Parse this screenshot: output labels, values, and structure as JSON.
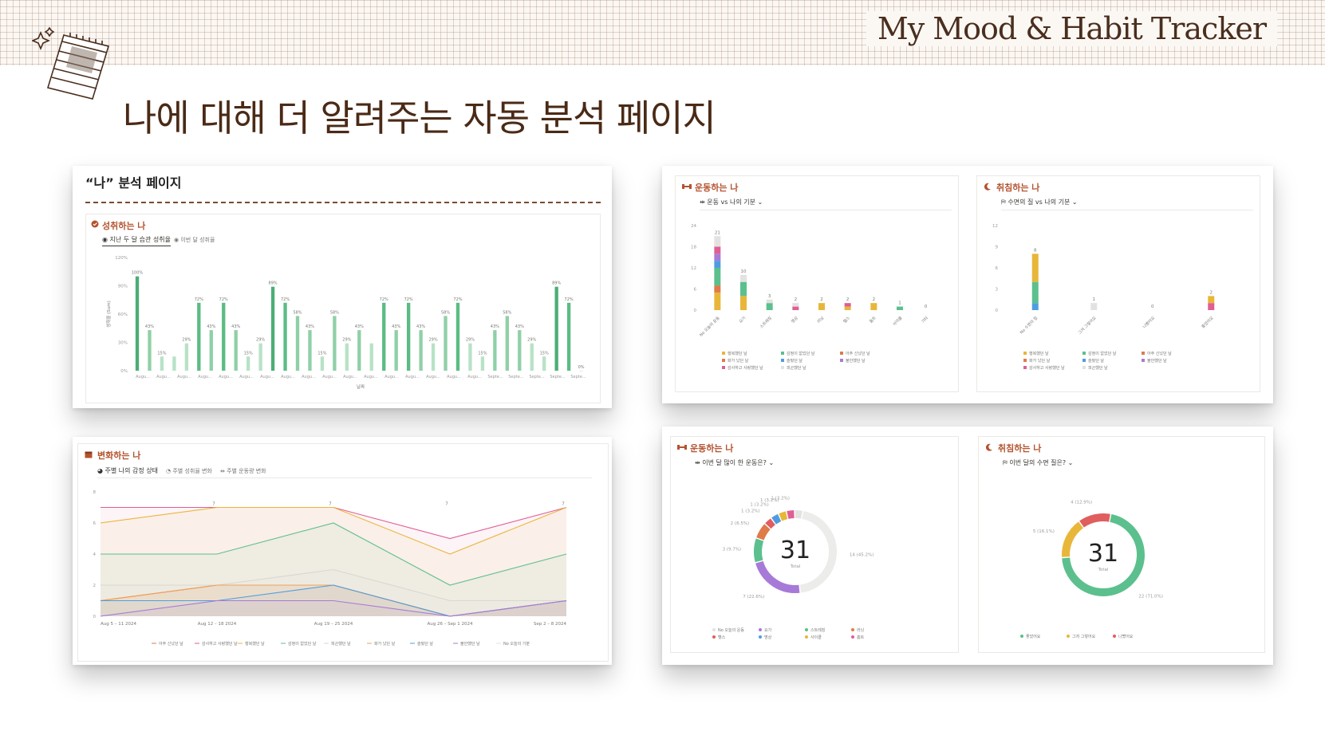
{
  "header": {
    "brand": "My Mood & Habit Tracker",
    "headline": "나에 대해 더 알려주는 자동 분석 페이지"
  },
  "card1": {
    "page_title": "“나” 분석 페이지",
    "panel_title": "성취하는 나",
    "tabs": [
      "지난 두 달 습관 성취율",
      "이번 달 성취율"
    ],
    "chart": {
      "type": "bar",
      "xlabel": "날짜",
      "ylabel": "성취율 (Sum)",
      "y_ticks": [
        "120%",
        "90%",
        "60%",
        "30%",
        "0%"
      ],
      "x_tick_labels": [
        "Augu...",
        "Augu...",
        "Augu...",
        "Augu...",
        "Augu...",
        "Augu...",
        "Augu...",
        "Augu...",
        "Augu...",
        "Augu...",
        "Augu...",
        "Augu...",
        "Augu...",
        "Augu...",
        "Augu...",
        "Augu...",
        "Augu...",
        "Septe...",
        "Septe...",
        "Septe...",
        "Septe...",
        "Septe..."
      ],
      "values": [
        100,
        43,
        15,
        15,
        29,
        72,
        43,
        72,
        43,
        15,
        29,
        89,
        72,
        58,
        43,
        15,
        58,
        29,
        43,
        29,
        72,
        43,
        72,
        43,
        29,
        58,
        72,
        29,
        15,
        43,
        58,
        43,
        29,
        15,
        89,
        72,
        0
      ],
      "labels": [
        "100%",
        "43%",
        "15%",
        "",
        "29%",
        "72%",
        "43%",
        "72%",
        "43%",
        "15%",
        "29%",
        "89%",
        "72%",
        "58%",
        "43%",
        "15%",
        "58%",
        "29%",
        "43%",
        "",
        "72%",
        "43%",
        "72%",
        "43%",
        "29%",
        "58%",
        "72%",
        "29%",
        "15%",
        "43%",
        "58%",
        "43%",
        "29%",
        "15%",
        "89%",
        "72%",
        "0%"
      ]
    }
  },
  "card2": {
    "panel_title": "운동하는 나",
    "tab": "운동 vs 나의 기분",
    "chart": {
      "type": "bar",
      "y_ticks": [
        "24",
        "18",
        "12",
        "6",
        "0"
      ],
      "categories": [
        "No 오늘의 운동",
        "요가",
        "스트레칭",
        "명상",
        "러닝",
        "헬스",
        "홈트",
        "사이클",
        "기타"
      ],
      "totals": [
        21,
        10,
        3,
        2,
        2,
        2,
        2,
        1,
        0
      ],
      "segments": [
        [
          {
            "c": "#e8b73a",
            "v": 5
          },
          {
            "c": "#df7a49",
            "v": 2
          },
          {
            "c": "#5bc08d",
            "v": 5
          },
          {
            "c": "#4f9de0",
            "v": 2
          },
          {
            "c": "#a77ad8",
            "v": 2
          },
          {
            "c": "#e05e94",
            "v": 2
          },
          {
            "c": "#e3e2e0",
            "v": 3
          }
        ],
        [
          {
            "c": "#e8b73a",
            "v": 4
          },
          {
            "c": "#5bc08d",
            "v": 4
          },
          {
            "c": "#e3e2e0",
            "v": 2
          }
        ],
        [
          {
            "c": "#5bc08d",
            "v": 2
          },
          {
            "c": "#e3e2e0",
            "v": 1
          }
        ],
        [
          {
            "c": "#e05e94",
            "v": 1
          },
          {
            "c": "#e3e2e0",
            "v": 1
          }
        ],
        [
          {
            "c": "#e8b73a",
            "v": 2
          }
        ],
        [
          {
            "c": "#e8b73a",
            "v": 1
          },
          {
            "c": "#e05e94",
            "v": 1
          }
        ],
        [
          {
            "c": "#e8b73a",
            "v": 2
          }
        ],
        [
          {
            "c": "#5bc08d",
            "v": 1
          }
        ],
        []
      ],
      "legend": [
        {
          "label": "행복했던 날",
          "color": "#e8b73a"
        },
        {
          "label": "감정이 없었던 날",
          "color": "#5bc08d"
        },
        {
          "label": "아주 신났던 날",
          "color": "#df7a49"
        },
        {
          "label": "화가 났던 날",
          "color": "#df7a49"
        },
        {
          "label": "슬펐던 날",
          "color": "#4f9de0"
        },
        {
          "label": "불안했던 날",
          "color": "#a77ad8"
        },
        {
          "label": "감사하고 사랑했던 날",
          "color": "#e05e94"
        },
        {
          "label": "피곤했던 날",
          "color": "#e3e2e0"
        }
      ]
    }
  },
  "card3": {
    "panel_title": "취침하는 나",
    "tab": "수면의 질 vs 나의 기분",
    "chart": {
      "type": "bar",
      "y_ticks": [
        "12",
        "9",
        "6",
        "3",
        "0"
      ],
      "categories": [
        "No 수면의 질",
        "그저 그렇어요",
        "나빴어요",
        "좋았어요"
      ],
      "totals": [
        8,
        1,
        0,
        2
      ],
      "segments": [
        [
          {
            "c": "#4f9de0",
            "v": 1
          },
          {
            "c": "#5bc08d",
            "v": 3
          },
          {
            "c": "#e8b73a",
            "v": 4
          }
        ],
        [
          {
            "c": "#e3e2e0",
            "v": 1
          }
        ],
        [],
        [
          {
            "c": "#e05e94",
            "v": 1
          },
          {
            "c": "#e8b73a",
            "v": 1
          }
        ]
      ],
      "legend": [
        {
          "label": "행복했던 날",
          "color": "#e8b73a"
        },
        {
          "label": "감정이 없었던 날",
          "color": "#5bc08d"
        },
        {
          "label": "아주 신났던 날",
          "color": "#df7a49"
        },
        {
          "label": "화가 났던 날",
          "color": "#df7a49"
        },
        {
          "label": "슬펐던 날",
          "color": "#4f9de0"
        },
        {
          "label": "불안했던 날",
          "color": "#a77ad8"
        },
        {
          "label": "감사하고 사랑했던 날",
          "color": "#e05e94"
        },
        {
          "label": "피곤했던 날",
          "color": "#e3e2e0"
        }
      ]
    }
  },
  "card4": {
    "panel_title": "변화하는 나",
    "tabs": [
      "주별 나의 감정 상태",
      "주별 성취율 변화",
      "주별 운동량 변화"
    ],
    "chart": {
      "type": "line",
      "x": [
        "Aug 5 – 11 2024",
        "Aug 12 – 18 2024",
        "Aug 19 – 25 2024",
        "Aug 26 – Sep 1 2024",
        "Sep 2 – 8 2024"
      ],
      "y_ticks": [
        "8",
        "6",
        "4",
        "2",
        "0"
      ],
      "ylim": [
        0,
        8
      ],
      "top_labels": [
        "7",
        "7",
        "7",
        "7"
      ],
      "series": [
        {
          "color": "#df7a49",
          "values": [
            1,
            2,
            2,
            0,
            1
          ]
        },
        {
          "color": "#e05e94",
          "values": [
            7,
            7,
            7,
            5,
            7
          ]
        },
        {
          "color": "#e8b73a",
          "values": [
            6,
            7,
            7,
            4,
            7
          ]
        },
        {
          "color": "#5bc08d",
          "values": [
            4,
            4,
            6,
            2,
            4
          ]
        },
        {
          "color": "#d9d7d3",
          "values": [
            2,
            2,
            3,
            1,
            1
          ]
        },
        {
          "color": "#f0a15a",
          "values": [
            1,
            2,
            2,
            0,
            1
          ]
        },
        {
          "color": "#4f9de0",
          "values": [
            1,
            1,
            2,
            0,
            1
          ]
        },
        {
          "color": "#a77ad8",
          "values": [
            0,
            1,
            1,
            0,
            1
          ]
        }
      ],
      "legend": [
        {
          "label": "아주 신났던 날",
          "color": "#df7a49"
        },
        {
          "label": "감사하고 사랑했던 날",
          "color": "#e05e94"
        },
        {
          "label": "행복했던 날",
          "color": "#e8b73a"
        },
        {
          "label": "감정이 없었던 날",
          "color": "#5bc08d"
        },
        {
          "label": "피곤했던 날",
          "color": "#d9d7d3"
        },
        {
          "label": "화가 났던 날",
          "color": "#f0a15a"
        },
        {
          "label": "슬펐던 날",
          "color": "#4f9de0"
        },
        {
          "label": "불안했던 날",
          "color": "#a77ad8"
        },
        {
          "label": "No 오늘의 기분",
          "color": "#e3e2e0"
        }
      ]
    }
  },
  "card5": {
    "panel_title": "운동하는 나",
    "tab": "이번 달 많이 한 운동은?",
    "chart": {
      "type": "pie",
      "total": "31",
      "total_label": "Total",
      "slices": [
        {
          "v": 14,
          "c": "#ececea",
          "label": "14 (45.2%)"
        },
        {
          "v": 7,
          "c": "#a77ad8",
          "label": "7 (22.6%)"
        },
        {
          "v": 3,
          "c": "#5bc08d",
          "label": "3 (9.7%)"
        },
        {
          "v": 2,
          "c": "#df7a49",
          "label": "2 (6.5%)"
        },
        {
          "v": 1,
          "c": "#e05e5e",
          "label": "1 (3.2%)"
        },
        {
          "v": 1,
          "c": "#4f9de0",
          "label": "1 (3.2%)"
        },
        {
          "v": 1,
          "c": "#e8b73a",
          "label": "1 (3.2%)"
        },
        {
          "v": 1,
          "c": "#e05e94",
          "label": "1 (3.2%)"
        },
        {
          "v": 1,
          "c": "#e3e2e0",
          "label": ""
        }
      ],
      "legend": [
        {
          "label": "No 오늘의 운동",
          "color": "#e3e2e0"
        },
        {
          "label": "요가",
          "color": "#a77ad8"
        },
        {
          "label": "스트레칭",
          "color": "#5bc08d"
        },
        {
          "label": "러닝",
          "color": "#df7a49"
        },
        {
          "label": "헬스",
          "color": "#e05e5e"
        },
        {
          "label": "명상",
          "color": "#4f9de0"
        },
        {
          "label": "사이클",
          "color": "#e8b73a"
        },
        {
          "label": "홈트",
          "color": "#e05e94"
        }
      ]
    }
  },
  "card6": {
    "panel_title": "취침하는 나",
    "tab": "이번 달의 수면 질은?",
    "chart": {
      "type": "pie",
      "total": "31",
      "total_label": "Total",
      "slices": [
        {
          "v": 22,
          "c": "#5bc08d",
          "label": "22 (71.0%)"
        },
        {
          "v": 5,
          "c": "#e8b73a",
          "label": "5 (16.1%)"
        },
        {
          "v": 4,
          "c": "#e05e5e",
          "label": "4 (12.9%)"
        }
      ],
      "legend": [
        {
          "label": "좋았어요",
          "color": "#5bc08d"
        },
        {
          "label": "그저 그렇어요",
          "color": "#e8b73a"
        },
        {
          "label": "나빴어요",
          "color": "#e05e5e"
        }
      ]
    }
  }
}
